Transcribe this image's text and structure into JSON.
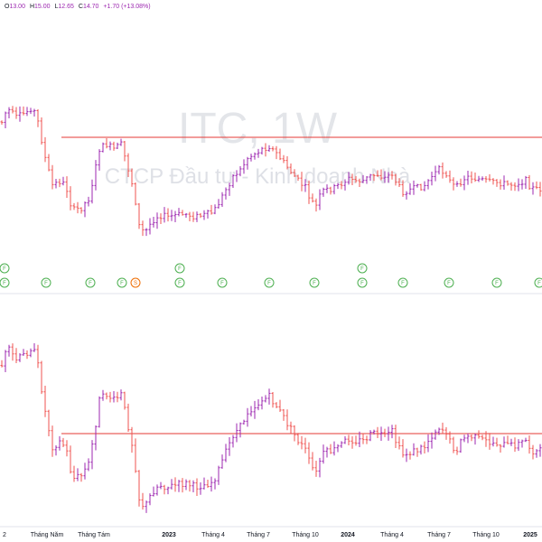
{
  "ohlc": {
    "o_label": "O",
    "o": "13.00",
    "h_label": "H",
    "h": "15.00",
    "l_label": "L",
    "l": "12.65",
    "c_label": "C",
    "c": "14.70",
    "change": "+1.70 (+13.08%)"
  },
  "watermark": {
    "symbol": "ITC, 1W",
    "name": "CTCP Đầu tư - Kinh doanh Nhà"
  },
  "colors": {
    "up": "#9c27b0",
    "down": "#ef5350",
    "resistance": "#e53935",
    "marker": "#4caf50",
    "split_marker": "#ef6c00"
  },
  "markers": {
    "row1": [
      "F",
      "F",
      "F"
    ],
    "row2": [
      "F",
      "F",
      "F",
      "F",
      "S",
      "F",
      "F",
      "F",
      "F",
      "F",
      "F",
      "F",
      "F",
      "F",
      "F",
      "F"
    ]
  },
  "x_axis": {
    "labels": [
      "2",
      "Tháng Năm",
      "Tháng Tám",
      "2023",
      "Tháng 4",
      "Tháng 7",
      "Tháng 10",
      "2024",
      "Tháng 4",
      "Tháng 7",
      "Tháng 10",
      "2025"
    ]
  }
}
